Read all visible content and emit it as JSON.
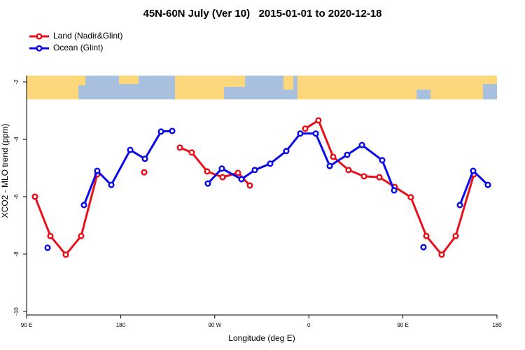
{
  "chart_data": {
    "type": "line",
    "title": "45N-60N July (Ver 10)   2015-01-01 to 2020-12-18",
    "x_label": "Longitude (deg E)",
    "y_label": "XCO2 - MLO trend (ppm)",
    "xlim": [
      90,
      540
    ],
    "xticks": [
      {
        "value": 90,
        "label": "90 E"
      },
      180,
      {
        "value": 270,
        "label": "90 W"
      },
      {
        "value": 360,
        "label": "0"
      },
      {
        "value": 450,
        "label": "90 E"
      },
      {
        "value": 540,
        "label": "180"
      }
    ],
    "ylim": [
      -10.2,
      0
    ],
    "yticks": [
      -10,
      -8,
      -6,
      -4,
      -2
    ],
    "legend": "top-left",
    "series": [
      {
        "name": "Land (Nadir&Glint)",
        "color": "#e8101a",
        "x": [
          98,
          112.8,
          127.5,
          142.2,
          157.6,
          null,
          202.5,
          null,
          236.7,
          248,
          262.8,
          277.5,
          292.2,
          303.6,
          null,
          356.5,
          369.2,
          383.3,
          398,
          412.8,
          427.5,
          442.2,
          457.6,
          472.4,
          487.1,
          500.5,
          517.9
        ],
        "values": [
          -6.0,
          -7.37,
          -8.02,
          -7.37,
          -5.22,
          null,
          -5.15,
          null,
          -4.29,
          -4.46,
          -5.12,
          -5.32,
          -5.17,
          -5.61,
          null,
          -3.63,
          -3.34,
          -4.61,
          -5.07,
          -5.29,
          -5.32,
          -5.66,
          -6.02,
          -7.37,
          -8.02,
          -7.37,
          -5.22
        ]
      },
      {
        "name": "Ocean (Glint)",
        "color": "#0a0ae8",
        "x": [
          110.1,
          null,
          144.9,
          157.6,
          171,
          189.1,
          203.2,
          218.6,
          229.3,
          null,
          263.4,
          276.8,
          295.6,
          308.3,
          323,
          338.4,
          351.8,
          366.6,
          380,
          396.7,
          410.8,
          430.2,
          441.6,
          null,
          469.7,
          null,
          504.5,
          517.2,
          531.3
        ],
        "values": [
          -7.78,
          null,
          -6.29,
          -5.1,
          -5.59,
          -4.37,
          -4.68,
          -3.73,
          -3.71,
          null,
          -5.54,
          -5.02,
          -5.39,
          -5.07,
          -4.85,
          -4.41,
          -3.8,
          -3.8,
          -4.93,
          -4.54,
          -4.2,
          -4.73,
          -5.78,
          null,
          -7.76,
          null,
          -6.29,
          -5.1,
          -5.59
        ]
      }
    ]
  }
}
